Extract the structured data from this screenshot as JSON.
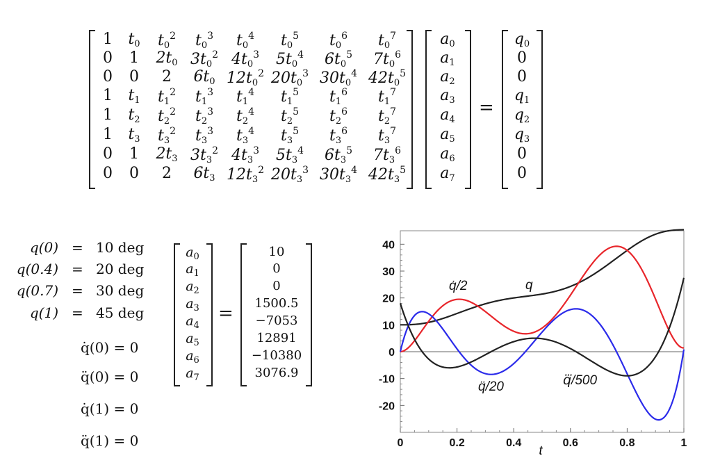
{
  "top_equation": {
    "matrix_rows": [
      [
        "1",
        "t_0",
        "t_0^2",
        "t_0^3",
        "t_0^4",
        "t_0^5",
        "t_0^6",
        "t_0^7"
      ],
      [
        "0",
        "1",
        "2t_0",
        "3t_0^2",
        "4t_0^3",
        "5t_0^4",
        "6t_0^5",
        "7t_0^6"
      ],
      [
        "0",
        "0",
        "2",
        "6t_0",
        "12t_0^2",
        "20t_0^3",
        "30t_0^4",
        "42t_0^5"
      ],
      [
        "1",
        "t_1",
        "t_1^2",
        "t_1^3",
        "t_1^4",
        "t_1^5",
        "t_1^6",
        "t_1^7"
      ],
      [
        "1",
        "t_2",
        "t_2^2",
        "t_2^3",
        "t_2^4",
        "t_2^5",
        "t_2^6",
        "t_2^7"
      ],
      [
        "1",
        "t_3",
        "t_3^2",
        "t_3^3",
        "t_3^4",
        "t_3^5",
        "t_3^6",
        "t_3^7"
      ],
      [
        "0",
        "1",
        "2t_3",
        "3t_3^2",
        "4t_3^3",
        "5t_3^4",
        "6t_3^5",
        "7t_3^6"
      ],
      [
        "0",
        "0",
        "2",
        "6t_3",
        "12t_3^2",
        "20t_3^3",
        "30t_3^4",
        "42t_3^5"
      ]
    ],
    "coeff_vector": [
      "a_0",
      "a_1",
      "a_2",
      "a_3",
      "a_4",
      "a_5",
      "a_6",
      "a_7"
    ],
    "equals": "=",
    "rhs_vector": [
      "q_0",
      "0",
      "0",
      "q_1",
      "q_2",
      "q_3",
      "0",
      "0"
    ]
  },
  "conditions": {
    "position": [
      {
        "lhs": "q(0)",
        "eq": "=",
        "rhs": "10 deg"
      },
      {
        "lhs": "q(0.4)",
        "eq": "=",
        "rhs": "20 deg"
      },
      {
        "lhs": "q(0.7)",
        "eq": "=",
        "rhs": "30 deg"
      },
      {
        "lhs": "q(1)",
        "eq": "=",
        "rhs": "45 deg"
      }
    ],
    "derivative": [
      "q̇(0) = 0",
      "q̈(0) = 0",
      "q̇(1) = 0",
      "q̈(1) = 0"
    ]
  },
  "solution": {
    "coeff_vector": [
      "a_0",
      "a_1",
      "a_2",
      "a_3",
      "a_4",
      "a_5",
      "a_6",
      "a_7"
    ],
    "equals": "=",
    "values": [
      "10",
      "0",
      "0",
      "1500.5",
      "−7053",
      "12891",
      "−10380",
      "3076.9"
    ]
  },
  "chart_data": {
    "type": "line",
    "xlabel": "t",
    "ylabel": "",
    "xlim": [
      0,
      1
    ],
    "ylim": [
      -30,
      45
    ],
    "xticks": [
      "0",
      "0.2",
      "0.4",
      "0.6",
      "0.8",
      "1"
    ],
    "yticks": [
      "40",
      "30",
      "20",
      "10",
      "0",
      "-10",
      "-20"
    ],
    "grid": false,
    "coefficients": [
      10,
      0,
      0,
      1500.5,
      -7053,
      12891,
      -10380,
      3076.9
    ],
    "series": [
      {
        "name": "q",
        "color": "#222222",
        "derivative_order": 0,
        "scale": 1
      },
      {
        "name": "q̇/2",
        "color": "#e8262b",
        "derivative_order": 1,
        "scale": 2
      },
      {
        "name": "q̈/20",
        "color": "#2b2bea",
        "derivative_order": 2,
        "scale": 20
      },
      {
        "name": "q⃛/500",
        "color": "#222222",
        "derivative_order": 3,
        "scale": 500
      }
    ],
    "x": [
      0,
      0.1,
      0.2,
      0.3,
      0.4,
      0.5,
      0.6,
      0.7,
      0.8,
      0.9,
      1.0
    ],
    "series_values": {
      "q": [
        10,
        11.1,
        15.4,
        18.9,
        20.0,
        21.3,
        24.7,
        30.0,
        37.1,
        43.3,
        45.0
      ],
      "q̇/2": [
        0,
        13.0,
        19.2,
        14.5,
        7.5,
        12.0,
        27.5,
        38.2,
        32.6,
        13.8,
        0
      ],
      "q̈/20": [
        0,
        14.0,
        4.8,
        -7.8,
        -7.2,
        5.8,
        15.8,
        8.9,
        -10.1,
        -23.2,
        0
      ],
      "q⃛/500": [
        18.0,
        0.7,
        -5.3,
        -0.3,
        5.0,
        3.7,
        -2.1,
        -7.0,
        -8.5,
        0.7,
        28.1
      ]
    }
  }
}
